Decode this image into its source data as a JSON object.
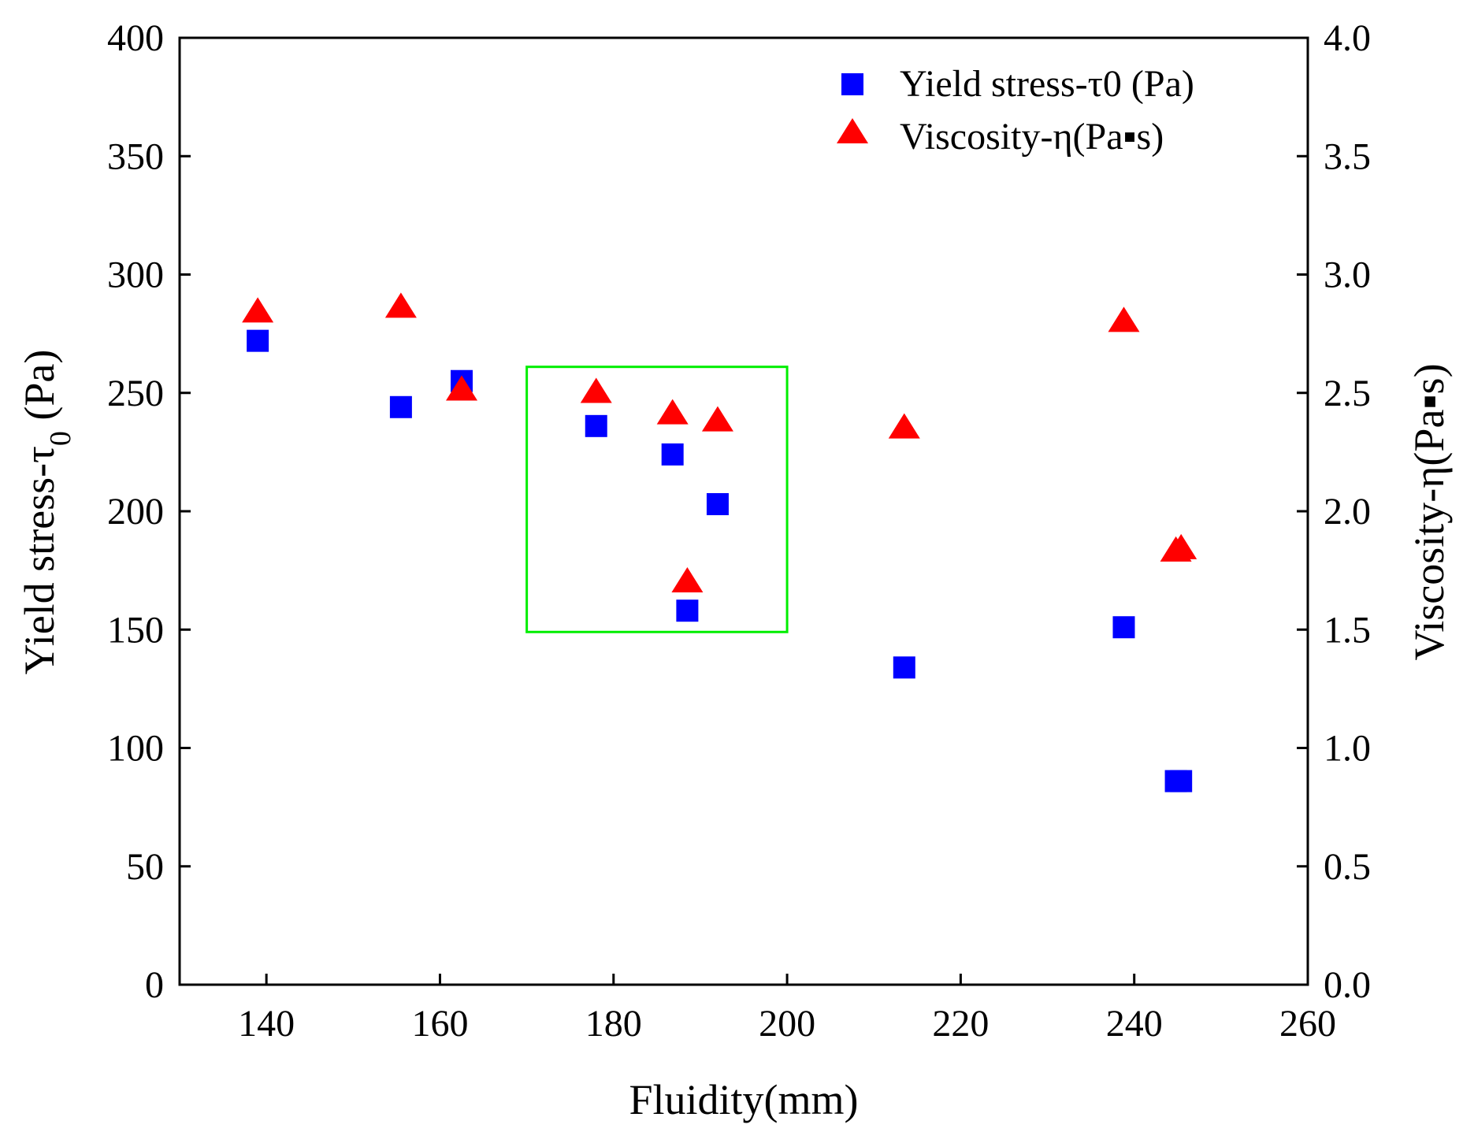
{
  "chart_data": {
    "type": "scatter",
    "title": "",
    "xlabel": "Fluidity(mm)",
    "ylabel_left_main": "Yield stress-τ",
    "ylabel_left_sub": "0",
    "ylabel_left_unit": " (Pa)",
    "ylabel_right": "Viscosity-η(Pa▪s)",
    "xlim": [
      130,
      260
    ],
    "ylim_left": [
      0,
      400
    ],
    "ylim_right": [
      0,
      4.0
    ],
    "x_ticks": [
      "140",
      "160",
      "180",
      "200",
      "220",
      "240",
      "260"
    ],
    "y_left_ticks": [
      "0",
      "50",
      "100",
      "150",
      "200",
      "250",
      "300",
      "350",
      "400"
    ],
    "y_right_ticks": [
      "0.0",
      "0.5",
      "1.0",
      "1.5",
      "2.0",
      "2.5",
      "3.0",
      "3.5",
      "4.0"
    ],
    "legend_position": "top-right",
    "series": [
      {
        "name": "Yield stress-τ0 (Pa)",
        "axis": "left",
        "marker": "square",
        "color": "#0000ff",
        "x": [
          139,
          155.5,
          162.5,
          178,
          186.8,
          188.5,
          192,
          213.5,
          238.8,
          244.8,
          245.4
        ],
        "y": [
          272,
          244,
          255,
          236,
          224,
          158,
          203,
          134,
          151,
          86,
          86
        ]
      },
      {
        "name": "Viscosity-η(Pa▪s)",
        "axis": "right",
        "marker": "triangle",
        "color": "#ff0000",
        "x": [
          139,
          155.5,
          162.5,
          178,
          186.8,
          188.5,
          192,
          213.5,
          238.8,
          244.8,
          245.4
        ],
        "y": [
          2.84,
          2.86,
          2.51,
          2.5,
          2.41,
          1.7,
          2.38,
          2.35,
          2.8,
          1.83,
          1.84
        ]
      }
    ],
    "highlight_box": {
      "x_range": [
        170,
        200
      ],
      "y_range_left": [
        149,
        261
      ],
      "color": "#00ee00"
    }
  }
}
